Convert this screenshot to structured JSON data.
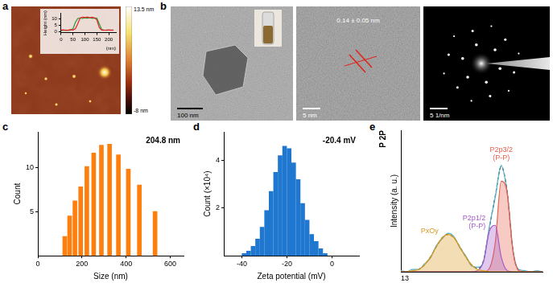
{
  "panel_labels": [
    "a",
    "b",
    "c",
    "d",
    "e"
  ],
  "images": {
    "afm": {
      "colorbar": {
        "range": [
          -8,
          13.5
        ],
        "ticks": [
          {
            "value": 13.5,
            "label": "13.5 nm"
          },
          {
            "value": -8,
            "label": "-8 nm"
          }
        ]
      }
    },
    "tem": {
      "scale_bar": "100 nm"
    },
    "hrtem": {
      "lattice_spacing": "0.14 ± 0.05 nm",
      "scale_bar": "5 nm"
    },
    "saed": {
      "scale_bar": "5 1/nm"
    }
  },
  "chart_data": [
    {
      "type": "line",
      "x_label": "(nm)",
      "y_label": "Height (nm)",
      "x": [
        0,
        10,
        20,
        30,
        40,
        50,
        60,
        70,
        80,
        90,
        100,
        110,
        120,
        130,
        140,
        150,
        160,
        170,
        180,
        190,
        200,
        210,
        220
      ],
      "xlim": [
        0,
        230
      ],
      "xticks": [
        0,
        50,
        100,
        150,
        200
      ],
      "ylim": [
        -1,
        14
      ],
      "yticks": [
        0,
        5,
        10
      ],
      "grid": false,
      "series": [
        {
          "color": "#e8202a",
          "values": [
            1,
            1.2,
            0.8,
            1,
            1.3,
            1,
            2,
            6,
            10.5,
            11,
            10.8,
            11.2,
            10.6,
            11,
            10.4,
            9,
            3,
            1,
            0.8,
            1.1,
            1,
            0.9,
            1
          ]
        },
        {
          "color": "#22a02c",
          "values": [
            0.5,
            0.8,
            1,
            0.7,
            1,
            2,
            7,
            10,
            10.3,
            10,
            10.5,
            10.2,
            10.6,
            10.1,
            10.4,
            10.2,
            6,
            1.5,
            1,
            0.8,
            1,
            1.1,
            0.9
          ]
        }
      ]
    },
    {
      "type": "bar",
      "x_label": "Size (nm)",
      "y_label": "Count",
      "annotations": [
        "204.8 nm"
      ],
      "x": [
        122,
        144,
        168,
        194,
        222,
        253,
        288,
        325,
        365,
        410,
        460,
        531
      ],
      "values": [
        2.2,
        4.5,
        6.2,
        7.8,
        10.1,
        11.6,
        12.5,
        12.6,
        11.4,
        9.8,
        8.0,
        5.0
      ],
      "color": "#ff7f0e",
      "xlim": [
        0,
        660
      ],
      "xticks": [
        0,
        200,
        400,
        600
      ],
      "ylim": [
        0,
        14
      ],
      "yticks": [
        5,
        10
      ],
      "grid": false
    },
    {
      "type": "bar",
      "x_label": "Zeta potential (mV)",
      "y_label": "Count (×10⁴)",
      "annotations": [
        "-20.4 mV"
      ],
      "x": [
        -39,
        -37,
        -35,
        -33,
        -31,
        -29,
        -27,
        -25,
        -23,
        -21,
        -19,
        -17,
        -15,
        -13,
        -11,
        -9,
        -7,
        -5,
        -3
      ],
      "values": [
        0.1,
        0.2,
        0.4,
        0.7,
        1.2,
        1.9,
        2.7,
        3.5,
        4.2,
        4.6,
        4.5,
        3.9,
        3.2,
        2.2,
        1.5,
        0.9,
        0.6,
        0.3,
        0.1
      ],
      "color": "#1f77d0",
      "xlim": [
        -48,
        12
      ],
      "xticks": [
        -40,
        -20,
        0
      ],
      "ylim": [
        0,
        5.2
      ],
      "yticks": [
        2,
        4
      ],
      "grid": false
    },
    {
      "type": "line",
      "title": "P 2P",
      "y_label": "Intensity (a. u.)",
      "annotations": [
        "13"
      ],
      "x": [
        138,
        137.5,
        137,
        136.5,
        136,
        135.5,
        135,
        134.5,
        134,
        133.5,
        133,
        132.5,
        132,
        131.5,
        131,
        130.5,
        130,
        129.5,
        129,
        128.5,
        128,
        127.5,
        127,
        126.5,
        126
      ],
      "xlim": [
        138,
        126
      ],
      "xticks": [],
      "ylim": [
        0,
        1.25
      ],
      "yticks": [],
      "tick_labels": false,
      "grid": false,
      "series": [
        {
          "name": "PxOy",
          "color": "#d99a20",
          "values": [
            0,
            0,
            0.01,
            0.02,
            0.06,
            0.13,
            0.22,
            0.3,
            0.33,
            0.3,
            0.22,
            0.13,
            0.06,
            0.02,
            0.01,
            0,
            0,
            0,
            0,
            0,
            0,
            0,
            0,
            0,
            0
          ]
        },
        {
          "name": "P2p1/2 (P-P)",
          "color": "#a45cc8",
          "values": [
            0,
            0,
            0,
            0,
            0,
            0,
            0,
            0,
            0,
            0,
            0,
            0,
            0,
            0.01,
            0.09,
            0.36,
            0.41,
            0.13,
            0.01,
            0,
            0,
            0,
            0,
            0,
            0
          ]
        },
        {
          "name": "P2p3/2 (P-P)",
          "color": "#e8604c",
          "values": [
            0,
            0,
            0,
            0,
            0,
            0,
            0,
            0,
            0,
            0,
            0,
            0,
            0,
            0,
            0,
            0.03,
            0.26,
            0.8,
            0.7,
            0.18,
            0.01,
            0,
            0,
            0,
            0
          ]
        },
        {
          "color": "#4fb0c6",
          "values": [
            0.01,
            0.0,
            0.02,
            0.02,
            0.07,
            0.12,
            0.23,
            0.29,
            0.34,
            0.31,
            0.21,
            0.14,
            0.05,
            0.04,
            0.09,
            0.4,
            0.66,
            0.94,
            0.7,
            0.19,
            0.02,
            0.01,
            0.0,
            0.01,
            0.0
          ]
        },
        {
          "color": "#333333",
          "line_style": "dashed",
          "values": [
            0,
            0,
            0.01,
            0.02,
            0.06,
            0.13,
            0.22,
            0.3,
            0.33,
            0.3,
            0.22,
            0.13,
            0.06,
            0.03,
            0.1,
            0.39,
            0.67,
            0.93,
            0.71,
            0.18,
            0.01,
            0,
            0,
            0,
            0
          ]
        }
      ]
    }
  ]
}
